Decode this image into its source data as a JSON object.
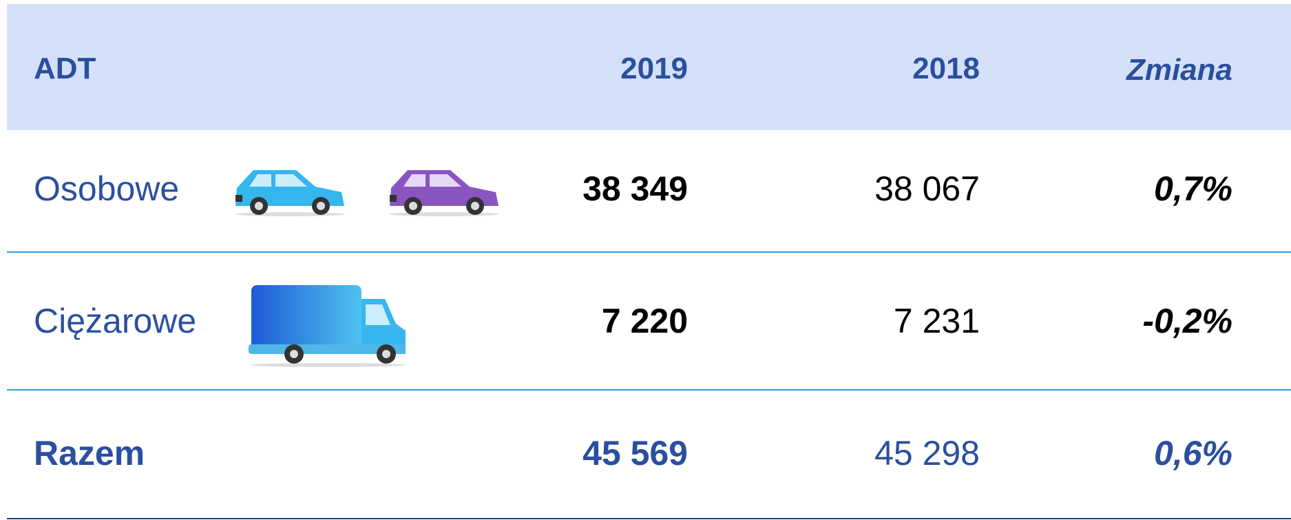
{
  "table": {
    "headers": [
      "ADT",
      "2019",
      "2018",
      "Zmiana"
    ],
    "rows": [
      [
        "Osobowe",
        "38 349",
        "38 067",
        "0,7%"
      ],
      [
        "Ciężarowe",
        "7 220",
        "7 231",
        "-0,2%"
      ],
      [
        "Razem",
        "45 569",
        "45 298",
        "0,6%"
      ]
    ]
  }
}
